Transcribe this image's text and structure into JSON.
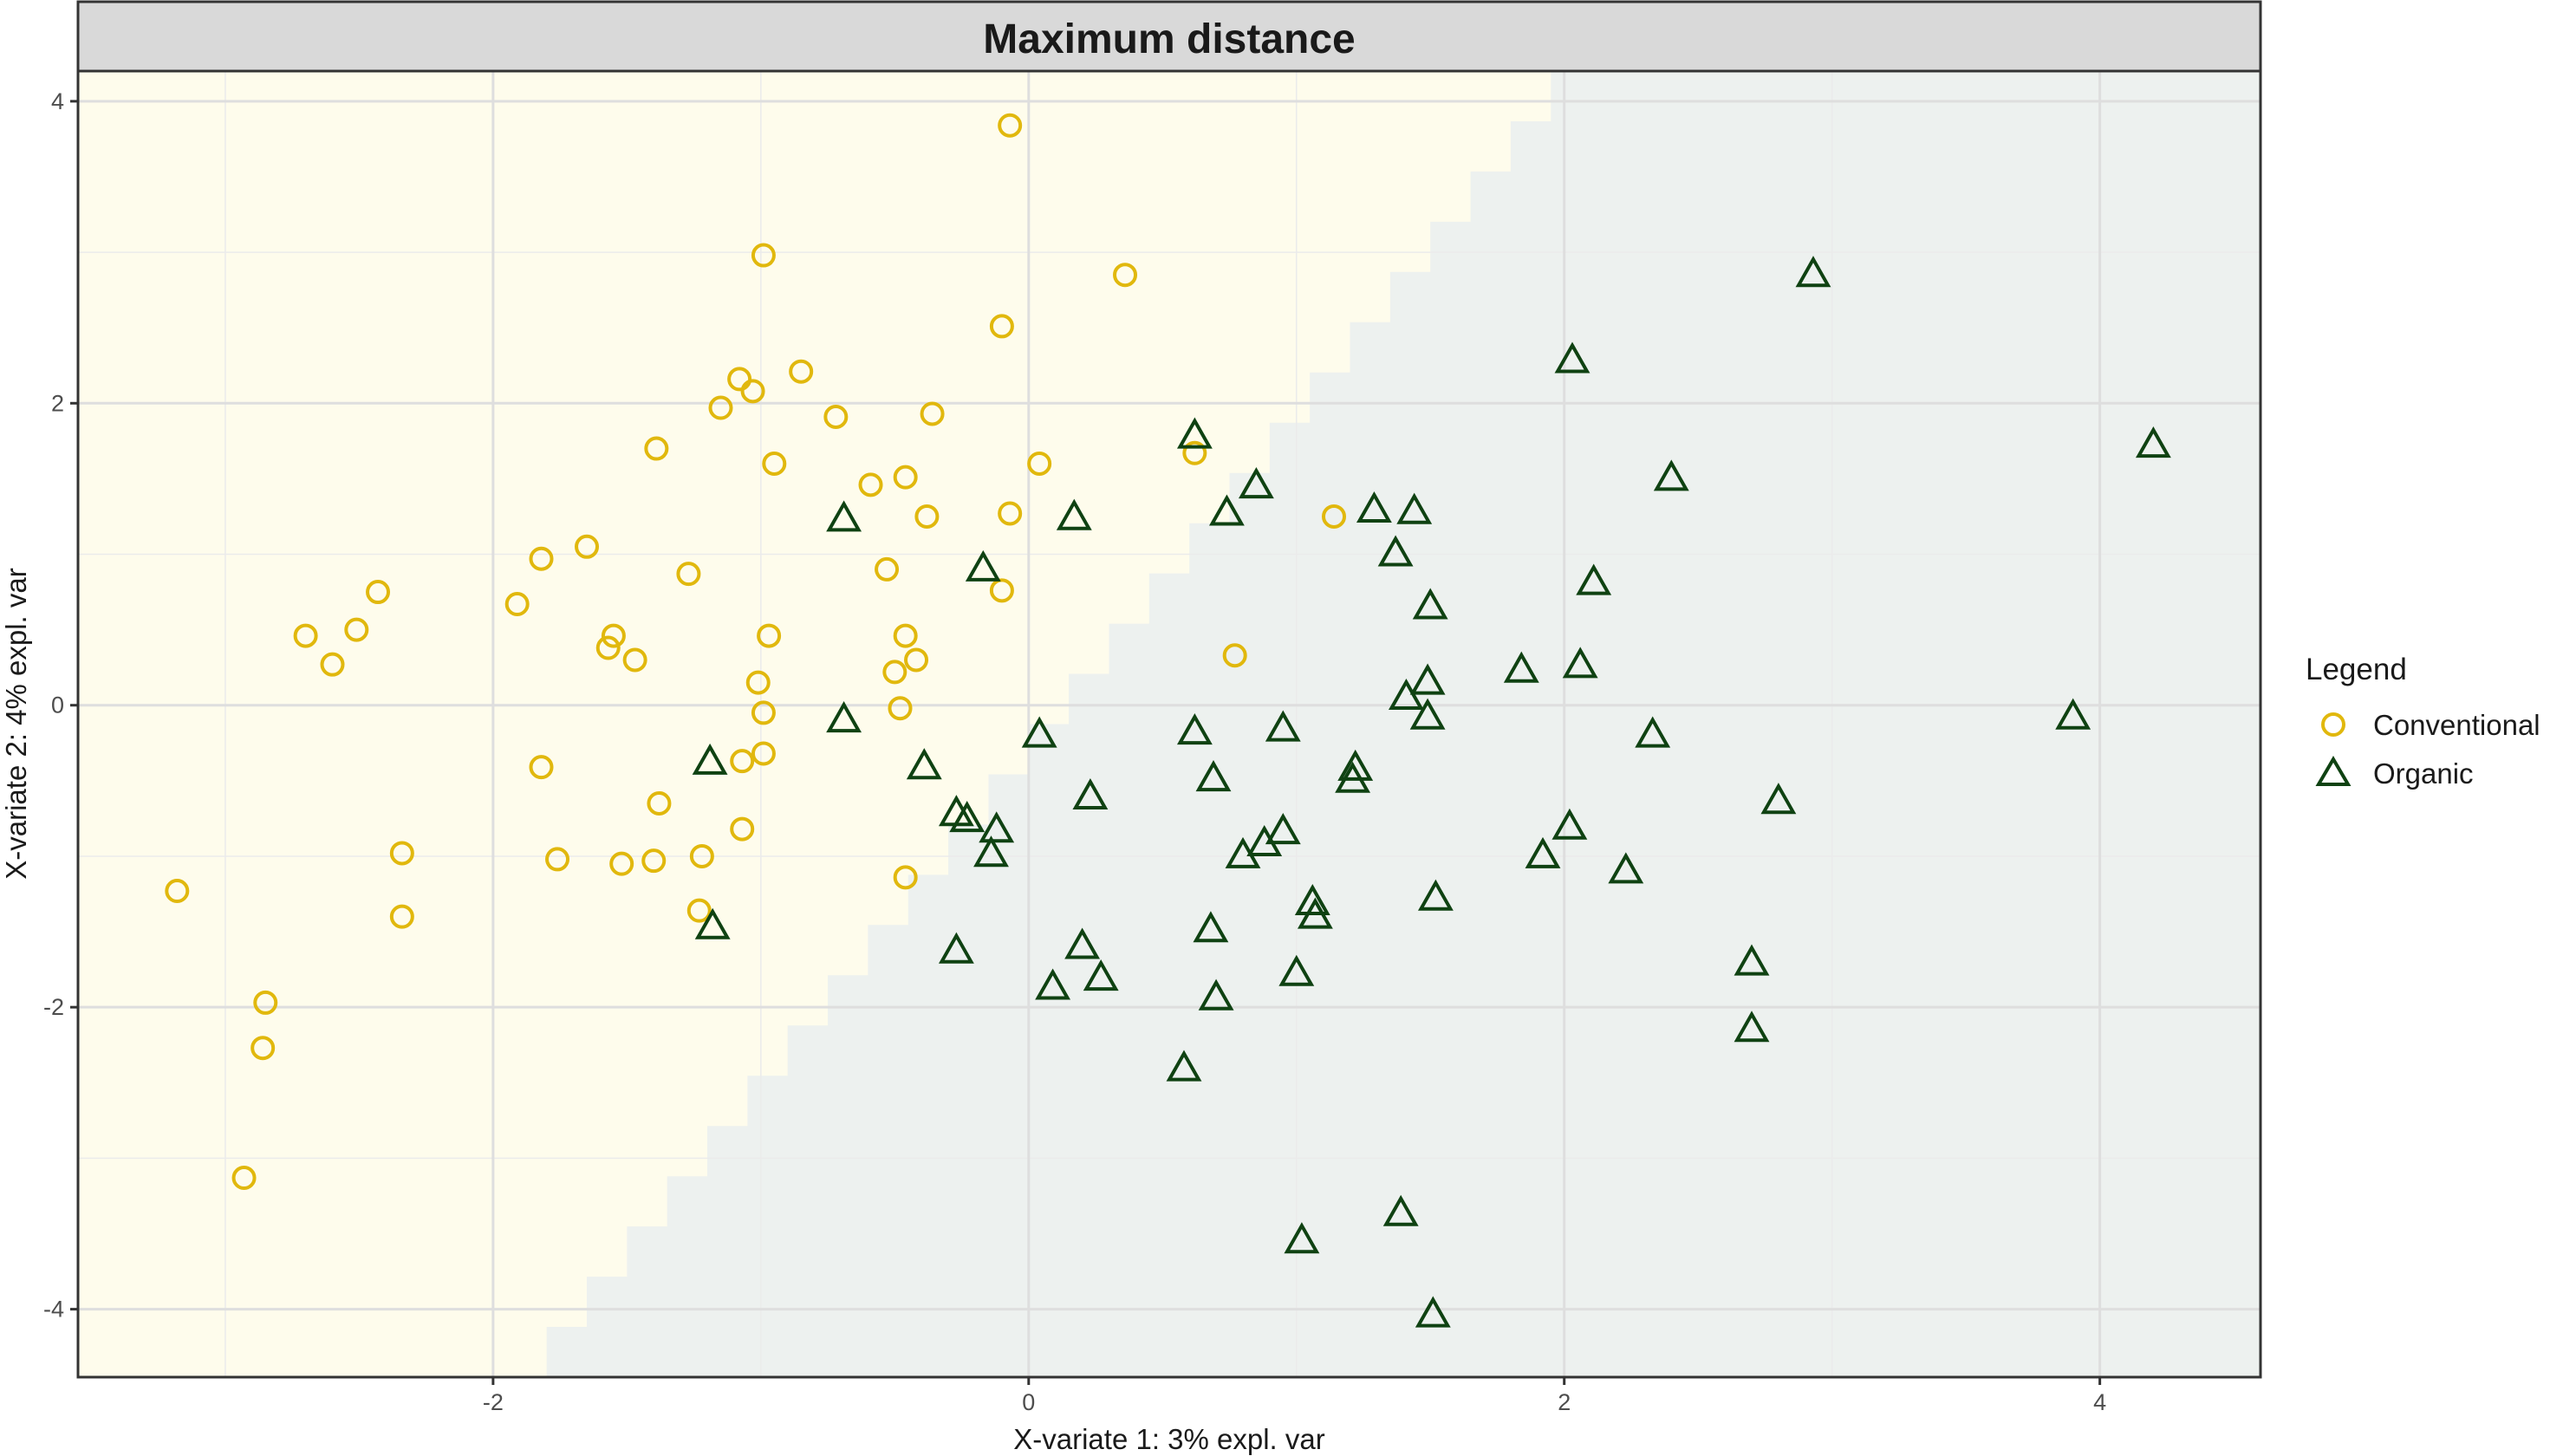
{
  "chart_data": {
    "type": "scatter",
    "title": "Maximum distance",
    "xlabel": "X-variate 1: 3% expl. var",
    "ylabel": "X-variate 2: 4% expl. var",
    "xlim": [
      -3.55,
      4.6
    ],
    "ylim": [
      -4.45,
      4.2
    ],
    "x_ticks": [
      -2,
      0,
      2,
      4
    ],
    "y_ticks": [
      -4,
      -2,
      0,
      2,
      4
    ],
    "x_tick_labels": [
      "-2",
      "0",
      "2",
      "4"
    ],
    "y_tick_labels": [
      "-4",
      "-2",
      "0",
      "2",
      "4"
    ],
    "grid": true,
    "legend": {
      "title": "Legend",
      "position": "right"
    },
    "background_regions": [
      {
        "class": "Conventional",
        "color": "#fefcec"
      },
      {
        "class": "Organic",
        "color": "#edf1ef"
      }
    ],
    "series": [
      {
        "name": "Conventional",
        "marker": "circle",
        "color": "#e1b80d",
        "points": [
          [
            -0.07,
            3.84
          ],
          [
            -0.99,
            2.98
          ],
          [
            0.36,
            2.85
          ],
          [
            -0.1,
            2.51
          ],
          [
            -1.08,
            2.16
          ],
          [
            -0.85,
            2.21
          ],
          [
            -1.03,
            2.08
          ],
          [
            -1.15,
            1.97
          ],
          [
            -0.72,
            1.91
          ],
          [
            -0.36,
            1.93
          ],
          [
            -1.39,
            1.7
          ],
          [
            -0.95,
            1.6
          ],
          [
            0.04,
            1.6
          ],
          [
            -0.59,
            1.46
          ],
          [
            -0.46,
            1.51
          ],
          [
            0.62,
            1.67
          ],
          [
            -0.38,
            1.25
          ],
          [
            -0.07,
            1.27
          ],
          [
            1.14,
            1.25
          ],
          [
            -1.65,
            1.05
          ],
          [
            -1.82,
            0.97
          ],
          [
            -0.53,
            0.9
          ],
          [
            -1.27,
            0.87
          ],
          [
            -0.1,
            0.76
          ],
          [
            -1.91,
            0.67
          ],
          [
            -2.43,
            0.75
          ],
          [
            -2.51,
            0.5
          ],
          [
            -2.7,
            0.46
          ],
          [
            -1.55,
            0.46
          ],
          [
            -1.57,
            0.38
          ],
          [
            -1.47,
            0.3
          ],
          [
            -2.6,
            0.27
          ],
          [
            -0.97,
            0.46
          ],
          [
            -0.46,
            0.46
          ],
          [
            -0.42,
            0.3
          ],
          [
            -0.5,
            0.22
          ],
          [
            -1.01,
            0.15
          ],
          [
            -0.48,
            -0.02
          ],
          [
            -0.99,
            -0.05
          ],
          [
            0.77,
            0.33
          ],
          [
            -0.99,
            -0.32
          ],
          [
            -1.07,
            -0.37
          ],
          [
            -1.82,
            -0.41
          ],
          [
            -1.38,
            -0.65
          ],
          [
            -1.07,
            -0.82
          ],
          [
            -2.34,
            -0.98
          ],
          [
            -1.76,
            -1.02
          ],
          [
            -1.52,
            -1.05
          ],
          [
            -1.4,
            -1.03
          ],
          [
            -1.22,
            -1.0
          ],
          [
            -0.46,
            -1.14
          ],
          [
            -3.18,
            -1.23
          ],
          [
            -2.34,
            -1.4
          ],
          [
            -1.23,
            -1.36
          ],
          [
            -2.85,
            -1.97
          ],
          [
            -2.86,
            -2.27
          ],
          [
            -2.93,
            -3.13
          ]
        ]
      },
      {
        "name": "Organic",
        "marker": "triangle",
        "color": "#0f4212",
        "points": [
          [
            2.93,
            2.85
          ],
          [
            2.03,
            2.28
          ],
          [
            4.2,
            1.72
          ],
          [
            0.62,
            1.78
          ],
          [
            2.4,
            1.5
          ],
          [
            0.85,
            1.45
          ],
          [
            0.74,
            1.27
          ],
          [
            1.29,
            1.29
          ],
          [
            1.44,
            1.28
          ],
          [
            -0.69,
            1.23
          ],
          [
            0.17,
            1.24
          ],
          [
            1.37,
            1.0
          ],
          [
            -0.17,
            0.9
          ],
          [
            2.11,
            0.81
          ],
          [
            1.5,
            0.65
          ],
          [
            1.84,
            0.23
          ],
          [
            2.06,
            0.26
          ],
          [
            1.49,
            0.15
          ],
          [
            1.41,
            0.05
          ],
          [
            -0.69,
            -0.1
          ],
          [
            1.49,
            -0.08
          ],
          [
            3.9,
            -0.08
          ],
          [
            0.62,
            -0.18
          ],
          [
            0.95,
            -0.16
          ],
          [
            0.04,
            -0.2
          ],
          [
            2.33,
            -0.2
          ],
          [
            -1.19,
            -0.38
          ],
          [
            -0.39,
            -0.41
          ],
          [
            1.22,
            -0.42
          ],
          [
            0.69,
            -0.49
          ],
          [
            1.21,
            -0.5
          ],
          [
            0.23,
            -0.61
          ],
          [
            2.8,
            -0.64
          ],
          [
            -0.27,
            -0.72
          ],
          [
            -0.23,
            -0.76
          ],
          [
            -0.12,
            -0.83
          ],
          [
            0.95,
            -0.84
          ],
          [
            0.88,
            -0.92
          ],
          [
            0.8,
            -1.0
          ],
          [
            -0.14,
            -0.99
          ],
          [
            1.92,
            -1.0
          ],
          [
            2.02,
            -0.81
          ],
          [
            2.23,
            -1.1
          ],
          [
            1.52,
            -1.28
          ],
          [
            1.06,
            -1.31
          ],
          [
            1.07,
            -1.4
          ],
          [
            -1.18,
            -1.47
          ],
          [
            0.68,
            -1.49
          ],
          [
            0.2,
            -1.6
          ],
          [
            -0.27,
            -1.63
          ],
          [
            2.7,
            -1.71
          ],
          [
            0.09,
            -1.87
          ],
          [
            0.27,
            -1.81
          ],
          [
            1.0,
            -1.78
          ],
          [
            0.7,
            -1.94
          ],
          [
            2.7,
            -2.15
          ],
          [
            0.58,
            -2.41
          ],
          [
            1.39,
            -3.37
          ],
          [
            1.02,
            -3.55
          ],
          [
            1.51,
            -4.04
          ]
        ]
      }
    ]
  }
}
